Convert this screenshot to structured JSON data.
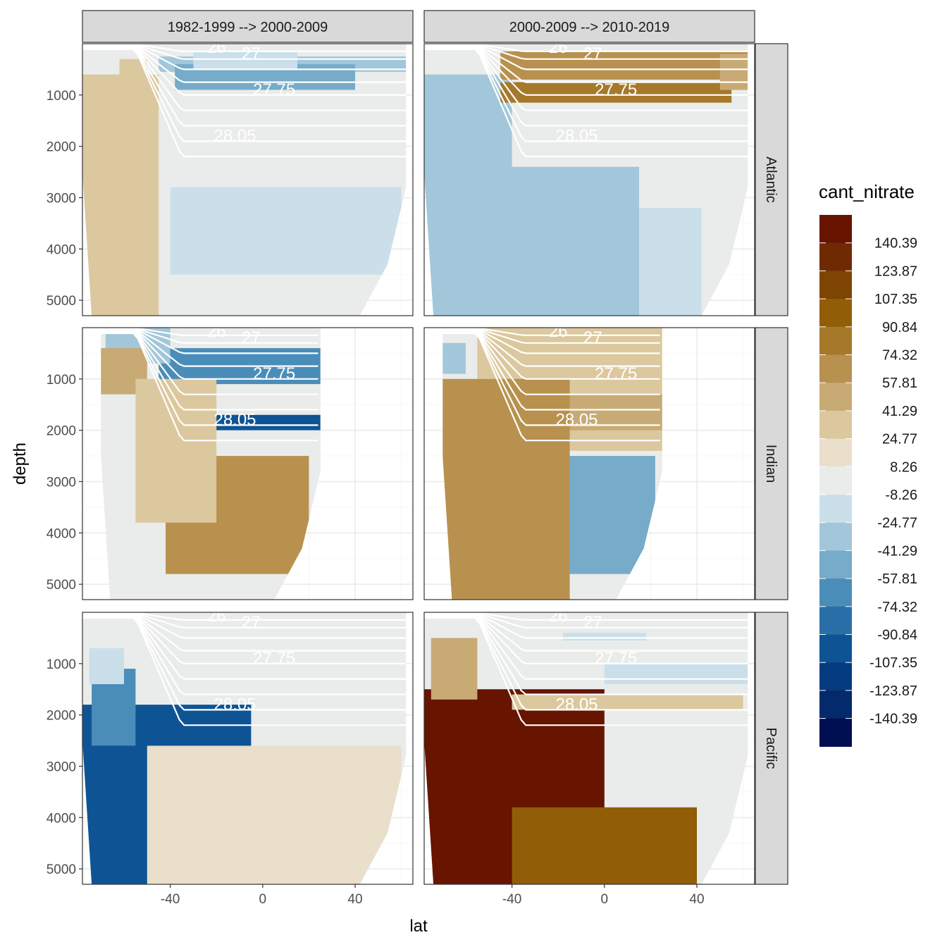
{
  "chart_data": {
    "type": "heatmap",
    "title": "",
    "xlabel": "lat",
    "ylabel": "depth",
    "legend_title": "cant_nitrate",
    "legend_placement": "right",
    "x_ticks": [
      -40,
      0,
      40
    ],
    "y_ticks": [
      1000,
      2000,
      3000,
      4000,
      5000
    ],
    "xlim": [
      -78,
      65
    ],
    "ylim": [
      5300,
      0
    ],
    "facet_columns": [
      "1982-1999 --> 2000-2009",
      "2000-2009 --> 2010-2019"
    ],
    "facet_rows": [
      "Atlantic",
      "Indian",
      "Pacific"
    ],
    "legend_breaks": [
      "140.39",
      "123.87",
      "107.35",
      "90.84",
      "74.32",
      "57.81",
      "41.29",
      "24.77",
      "8.26",
      "-8.26",
      "-24.77",
      "-41.29",
      "-57.81",
      "-74.32",
      "-90.84",
      "-107.35",
      "-123.87",
      "-140.39"
    ],
    "legend_colors": [
      "#671400",
      "#6f2a04",
      "#7e4403",
      "#925d07",
      "#a6782a",
      "#b8914f",
      "#c8aa74",
      "#dcc89e",
      "#e9dfcb",
      "#e9ecea",
      "#cadfea",
      "#a2c7da",
      "#76abc9",
      "#4a8db8",
      "#2a6fa8",
      "#0e5495",
      "#053c80",
      "#032a6b",
      "#000e52"
    ],
    "contour_labels": [
      "26",
      "27",
      "27.75",
      "28.05"
    ],
    "ocean_max_lat": {
      "Atlantic": 62,
      "Indian": 25,
      "Pacific": 62
    },
    "panels": [
      {
        "row": "Atlantic",
        "col": "1982-1999 --> 2000-2009",
        "bands": [
          {
            "value": -41.29,
            "lat": [
              -45,
              62
            ],
            "depth": [
              250,
              550
            ]
          },
          {
            "value": -57.81,
            "lat": [
              -38,
              40
            ],
            "depth": [
              400,
              900
            ]
          },
          {
            "value": -24.77,
            "lat": [
              -30,
              15
            ],
            "depth": [
              150,
              500
            ]
          },
          {
            "value": -24.77,
            "lat": [
              -40,
              60
            ],
            "depth": [
              2800,
              4500
            ]
          },
          {
            "value": 24.77,
            "lat": [
              -78,
              -45
            ],
            "depth": [
              600,
              5300
            ]
          },
          {
            "value": 24.77,
            "lat": [
              -62,
              -50
            ],
            "depth": [
              300,
              1800
            ]
          }
        ]
      },
      {
        "row": "Atlantic",
        "col": "2000-2009 --> 2010-2019",
        "bands": [
          {
            "value": -41.29,
            "lat": [
              -78,
              -40
            ],
            "depth": [
              600,
              5300
            ]
          },
          {
            "value": -41.29,
            "lat": [
              -50,
              15
            ],
            "depth": [
              2400,
              5300
            ]
          },
          {
            "value": -24.77,
            "lat": [
              15,
              42
            ],
            "depth": [
              3200,
              5300
            ]
          },
          {
            "value": 57.81,
            "lat": [
              -45,
              62
            ],
            "depth": [
              150,
              700
            ]
          },
          {
            "value": 74.32,
            "lat": [
              -45,
              55
            ],
            "depth": [
              750,
              1150
            ]
          },
          {
            "value": 41.29,
            "lat": [
              50,
              62
            ],
            "depth": [
              200,
              900
            ]
          }
        ]
      },
      {
        "row": "Indian",
        "col": "1982-1999 --> 2000-2009",
        "bands": [
          {
            "value": -74.32,
            "lat": [
              -45,
              25
            ],
            "depth": [
              400,
              1100
            ]
          },
          {
            "value": -107.35,
            "lat": [
              -25,
              25
            ],
            "depth": [
              1700,
              2000
            ]
          },
          {
            "value": -41.29,
            "lat": [
              -68,
              -40
            ],
            "depth": [
              0,
              700
            ]
          },
          {
            "value": 41.29,
            "lat": [
              -70,
              -50
            ],
            "depth": [
              400,
              1300
            ]
          },
          {
            "value": 57.81,
            "lat": [
              -42,
              20
            ],
            "depth": [
              2500,
              4800
            ]
          },
          {
            "value": 24.77,
            "lat": [
              -55,
              -20
            ],
            "depth": [
              1000,
              3800
            ]
          }
        ]
      },
      {
        "row": "Indian",
        "col": "2000-2009 --> 2010-2019",
        "bands": [
          {
            "value": 24.77,
            "lat": [
              -55,
              25
            ],
            "depth": [
              0,
              2400
            ]
          },
          {
            "value": 41.29,
            "lat": [
              -25,
              25
            ],
            "depth": [
              1300,
              2000
            ]
          },
          {
            "value": -57.81,
            "lat": [
              -40,
              22
            ],
            "depth": [
              2500,
              4800
            ]
          },
          {
            "value": 57.81,
            "lat": [
              -70,
              -15
            ],
            "depth": [
              1000,
              5300
            ]
          },
          {
            "value": -41.29,
            "lat": [
              -70,
              -60
            ],
            "depth": [
              300,
              900
            ]
          }
        ]
      },
      {
        "row": "Pacific",
        "col": "1982-1999 --> 2000-2009",
        "bands": [
          {
            "value": -107.35,
            "lat": [
              -78,
              -5
            ],
            "depth": [
              1800,
              5300
            ]
          },
          {
            "value": -74.32,
            "lat": [
              -74,
              -55
            ],
            "depth": [
              1100,
              2600
            ]
          },
          {
            "value": -24.77,
            "lat": [
              -75,
              -60
            ],
            "depth": [
              700,
              1400
            ]
          },
          {
            "value": 8.26,
            "lat": [
              -50,
              60
            ],
            "depth": [
              2600,
              5300
            ]
          }
        ]
      },
      {
        "row": "Pacific",
        "col": "2000-2009 --> 2010-2019",
        "bands": [
          {
            "value": 140.39,
            "lat": [
              -78,
              0
            ],
            "depth": [
              1500,
              5300
            ]
          },
          {
            "value": 90.84,
            "lat": [
              -40,
              40
            ],
            "depth": [
              3800,
              5300
            ]
          },
          {
            "value": 41.29,
            "lat": [
              -75,
              -55
            ],
            "depth": [
              500,
              1700
            ]
          },
          {
            "value": 24.77,
            "lat": [
              -40,
              60
            ],
            "depth": [
              1600,
              1900
            ]
          },
          {
            "value": -24.77,
            "lat": [
              0,
              62
            ],
            "depth": [
              1000,
              1400
            ]
          },
          {
            "value": -24.77,
            "lat": [
              -18,
              18
            ],
            "depth": [
              400,
              550
            ]
          }
        ]
      }
    ]
  }
}
